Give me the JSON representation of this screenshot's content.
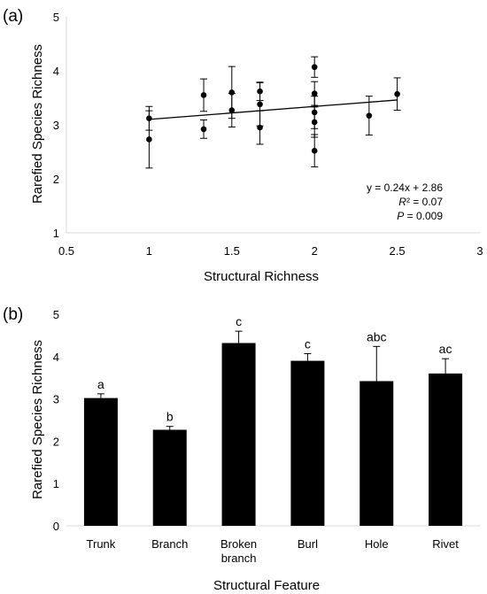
{
  "chart_data": [
    {
      "panel_label": "(a)",
      "type": "scatter",
      "xlabel": "Structural Richness",
      "ylabel": "Rarefied Species Richness",
      "xlim": [
        0.5,
        3
      ],
      "ylim": [
        1,
        5
      ],
      "x_ticks": [
        "0.5",
        "1",
        "1.5",
        "2",
        "2.5",
        "3"
      ],
      "y_ticks": [
        "1",
        "2",
        "3",
        "4",
        "5"
      ],
      "grid": false,
      "points": [
        {
          "x": 1.0,
          "y": 3.12,
          "err": 0.22
        },
        {
          "x": 1.0,
          "y": 2.73,
          "err": 0.53
        },
        {
          "x": 1.33,
          "y": 3.55,
          "err": 0.3
        },
        {
          "x": 1.33,
          "y": 2.92,
          "err": 0.17
        },
        {
          "x": 1.5,
          "y": 3.6,
          "err": 0.48
        },
        {
          "x": 1.5,
          "y": 3.27,
          "err": 0.31
        },
        {
          "x": 1.67,
          "y": 3.62,
          "err": 0.17
        },
        {
          "x": 1.67,
          "y": 3.38,
          "err": 0.4
        },
        {
          "x": 1.67,
          "y": 2.95,
          "err": 0.31
        },
        {
          "x": 2.0,
          "y": 4.07,
          "err": 0.19
        },
        {
          "x": 2.0,
          "y": 3.58,
          "err": 0.22
        },
        {
          "x": 2.0,
          "y": 3.23,
          "err": 0.3
        },
        {
          "x": 2.0,
          "y": 3.05,
          "err": 0.28
        },
        {
          "x": 2.0,
          "y": 2.52,
          "err": 0.3
        },
        {
          "x": 2.33,
          "y": 3.17,
          "err": 0.36
        },
        {
          "x": 2.5,
          "y": 3.57,
          "err": 0.3
        }
      ],
      "trendline": {
        "slope": 0.24,
        "intercept": 2.86,
        "x_range": [
          1.0,
          2.5
        ]
      },
      "annotation": {
        "equation": "y = 0.24x + 2.86",
        "r2_symbol": "R",
        "r2_value": "² = 0.07",
        "p_symbol": "P",
        "p_value": " = 0.009"
      }
    },
    {
      "panel_label": "(b)",
      "type": "bar",
      "xlabel": "Structural Feature",
      "ylabel": "Rarefied Species Richness",
      "ylim": [
        0,
        5
      ],
      "y_ticks": [
        "0",
        "1",
        "2",
        "3",
        "4",
        "5"
      ],
      "grid": false,
      "categories": [
        [
          "Trunk"
        ],
        [
          "Branch"
        ],
        [
          "Broken",
          "branch"
        ],
        [
          "Burl"
        ],
        [
          "Hole"
        ],
        [
          "Rivet"
        ]
      ],
      "values": [
        3.02,
        2.27,
        4.32,
        3.9,
        3.42,
        3.6
      ],
      "errors": [
        0.1,
        0.08,
        0.28,
        0.17,
        0.82,
        0.35
      ],
      "letters": [
        "a",
        "b",
        "c",
        "c",
        "abc",
        "ac"
      ],
      "bar_color": "#000000"
    }
  ]
}
